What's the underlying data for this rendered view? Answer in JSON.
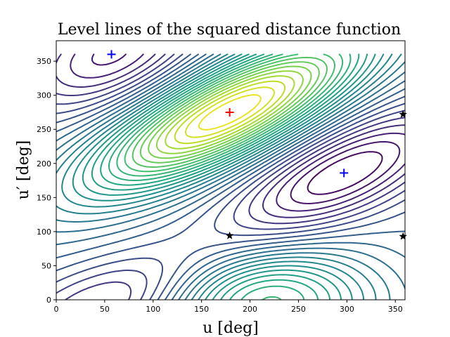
{
  "chart_data": {
    "type": "contour",
    "title": "Level lines of the squared distance function",
    "xlabel": "u [deg]",
    "ylabel": "u′ [deg]",
    "xlim": [
      0,
      360
    ],
    "ylim": [
      0,
      380
    ],
    "xticks": [
      0,
      50,
      100,
      150,
      200,
      250,
      300,
      350
    ],
    "yticks": [
      0,
      50,
      100,
      150,
      200,
      250,
      300,
      350
    ],
    "grid": false,
    "colormap": "viridis",
    "contour_domain": {
      "x": [
        0,
        360
      ],
      "y": [
        0,
        360
      ]
    },
    "levels": 30,
    "markers": [
      {
        "type": "plus",
        "color": "#ff0000",
        "x": 179,
        "y": 275
      },
      {
        "type": "plus",
        "color": "#0000ff",
        "x": 57,
        "y": 360
      },
      {
        "type": "plus",
        "color": "#0000ff",
        "x": 297,
        "y": 186
      },
      {
        "type": "star",
        "color": "#000000",
        "x": 179,
        "y": 94
      },
      {
        "type": "star",
        "color": "#000000",
        "x": 358,
        "y": 272
      },
      {
        "type": "star",
        "color": "#000000",
        "x": 358,
        "y": 93
      }
    ]
  }
}
